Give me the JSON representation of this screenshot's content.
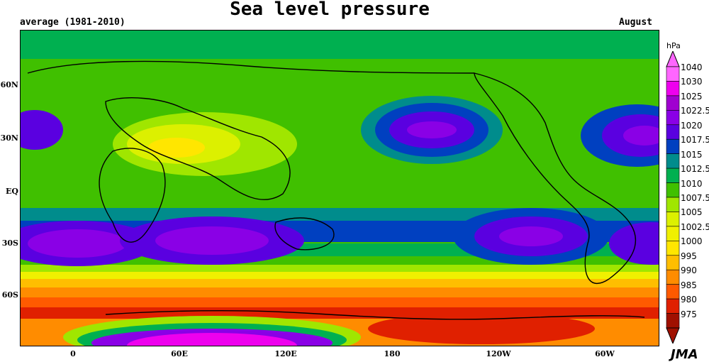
{
  "header": {
    "title": "Sea level pressure",
    "subtitle_left": "average (1981-2010)",
    "subtitle_right": "August"
  },
  "map": {
    "lat_labels": [
      "60N",
      "30N",
      "EQ",
      "30S",
      "60S"
    ],
    "lon_labels": [
      "0",
      "60E",
      "120E",
      "180",
      "120W",
      "60W"
    ]
  },
  "legend": {
    "unit": "hPa",
    "levels": [
      "1040",
      "1030",
      "1025",
      "1022.5",
      "1020",
      "1017.5",
      "1015",
      "1012.5",
      "1010",
      "1007.5",
      "1005",
      "1002.5",
      "1000",
      "995",
      "990",
      "985",
      "980",
      "975"
    ],
    "colors": {
      "1040": "#ff66ff",
      "1030": "#ee00ee",
      "1025": "#a000d0",
      "1022.5": "#8a00e6",
      "1020": "#5a00e0",
      "1017.5": "#0040c0",
      "1015": "#008c8c",
      "1012.5": "#00b050",
      "1010": "#40c000",
      "1007.5": "#a0e600",
      "1005": "#dcf000",
      "1002.5": "#f0f000",
      "1000": "#ffe600",
      "995": "#ffbe00",
      "990": "#ff8c00",
      "985": "#ff5a00",
      "980": "#e02000",
      "975": "#a01000"
    }
  },
  "credit": "JMA"
}
